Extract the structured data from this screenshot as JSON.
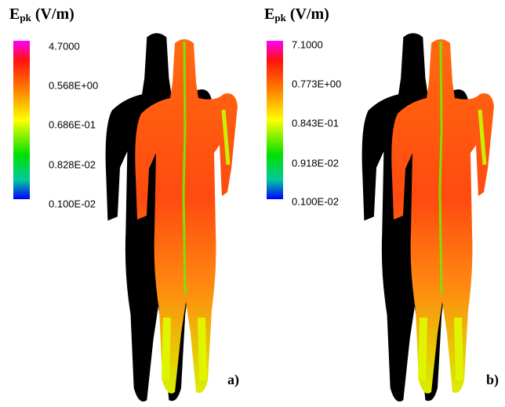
{
  "panels": [
    {
      "title": {
        "symbol": "E",
        "subscript": "pk",
        "unit": "(V/m)"
      },
      "scale_labels": [
        "4.7000",
        "0.568E+00",
        "0.686E-01",
        "0.828E-02",
        "0.100E-02"
      ],
      "label": "a)"
    },
    {
      "title": {
        "symbol": "E",
        "subscript": "pk",
        "unit": "(V/m)"
      },
      "scale_labels": [
        "7.1000",
        "0.773E+00",
        "0.843E-01",
        "0.918E-02",
        "0.100E-02"
      ],
      "label": "b)"
    }
  ]
}
